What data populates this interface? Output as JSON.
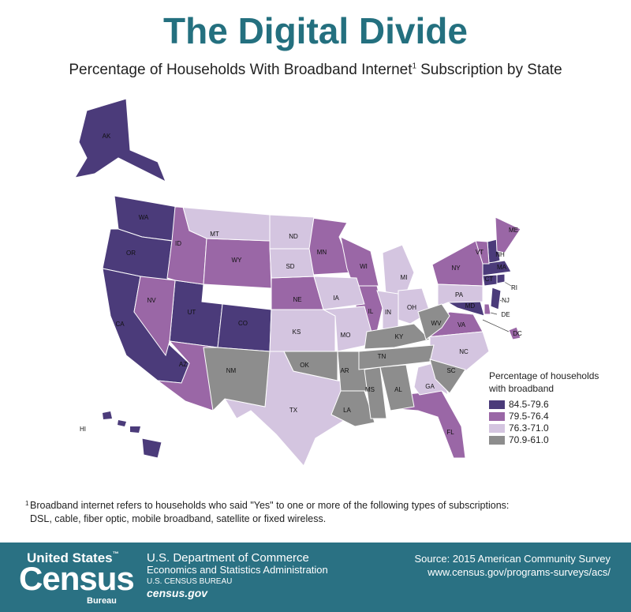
{
  "header": {
    "title": "The Digital Divide",
    "subtitle": "Percentage of Households With Broadband Internet",
    "subtitle_sup": "1",
    "subtitle_end": "Subscription by State"
  },
  "legend": {
    "title_lines": [
      "Percentage of households",
      "with broadband"
    ],
    "classes": [
      {
        "label": "84.5-79.6",
        "color": "#4b3b7a",
        "states": [
          "AK",
          "WA",
          "OR",
          "CA",
          "UT",
          "CO",
          "HI",
          "NH",
          "MA",
          "CT",
          "RI",
          "NJ",
          "MD"
        ]
      },
      {
        "label": "79.5-76.4",
        "color": "#9a67a6",
        "states": [
          "ID",
          "WY",
          "NV",
          "AZ",
          "MN",
          "WI",
          "NE",
          "IL",
          "ME",
          "VT",
          "NY",
          "VA",
          "FL",
          "DE",
          "DC"
        ]
      },
      {
        "label": "76.3-71.0",
        "color": "#d4c5e0",
        "states": [
          "MT",
          "ND",
          "SD",
          "KS",
          "TX",
          "IA",
          "MO",
          "MI",
          "IN",
          "OH",
          "PA",
          "NC",
          "GA"
        ]
      },
      {
        "label": "70.9-61.0",
        "color": "#8d8d8d",
        "states": [
          "NM",
          "OK",
          "AR",
          "LA",
          "MS",
          "AL",
          "TN",
          "KY",
          "WV",
          "SC"
        ]
      }
    ]
  },
  "footnote": {
    "mark": "1",
    "lines": [
      "Broadband internet refers to households who said \"Yes\" to one or more of the following types of subscriptions:",
      "DSL, cable, fiber optic, mobile broadband, satellite or fixed wireless."
    ]
  },
  "footer": {
    "logo": {
      "line1": "United States",
      "tm": "™",
      "line2": "Census",
      "line3": "Bureau"
    },
    "agency": [
      "U.S. Department of Commerce",
      "Economics and Statistics Administration",
      "U.S. CENSUS BUREAU",
      "census.gov"
    ],
    "source": [
      "Source: 2015 American Community Survey",
      "www.census.gov/programs-surveys/acs/"
    ]
  }
}
